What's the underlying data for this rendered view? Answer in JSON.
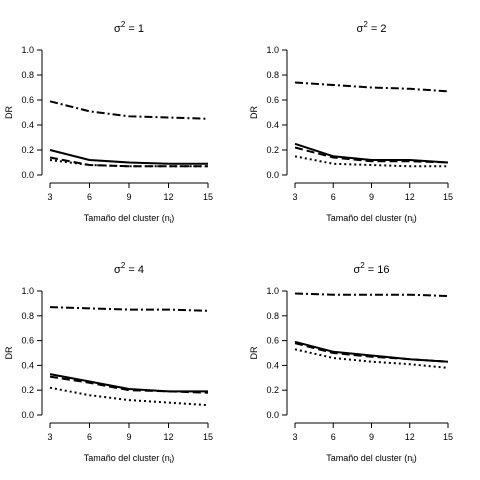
{
  "chart_data": [
    {
      "type": "line",
      "title": {
        "prefix": "σ",
        "sup": "2",
        "suffix": " = 1"
      },
      "xlabel": {
        "text": "Tamaño del cluster (n",
        "sub": "i",
        "close": ")"
      },
      "ylabel": "DR",
      "xlim": [
        3,
        15
      ],
      "ylim": [
        0,
        1
      ],
      "xticks": [
        "3",
        "6",
        "9",
        "12",
        "15"
      ],
      "yticks": [
        "0.0",
        "0.2",
        "0.4",
        "0.6",
        "0.8",
        "1.0"
      ],
      "x": [
        3,
        6,
        9,
        12,
        15
      ],
      "series": [
        {
          "style": "solid",
          "values": [
            0.2,
            0.12,
            0.1,
            0.09,
            0.09
          ]
        },
        {
          "style": "dashed",
          "values": [
            0.14,
            0.08,
            0.07,
            0.07,
            0.07
          ]
        },
        {
          "style": "dotted",
          "values": [
            0.12,
            0.08,
            0.07,
            0.07,
            0.07
          ]
        },
        {
          "style": "dotdash",
          "values": [
            0.59,
            0.51,
            0.47,
            0.46,
            0.45
          ]
        }
      ]
    },
    {
      "type": "line",
      "title": {
        "prefix": "σ",
        "sup": "2",
        "suffix": " = 2"
      },
      "xlabel": {
        "text": "Tamaño del cluster (n",
        "sub": "i",
        "close": ")"
      },
      "ylabel": "DR",
      "xlim": [
        3,
        15
      ],
      "ylim": [
        0,
        1
      ],
      "xticks": [
        "3",
        "6",
        "9",
        "12",
        "15"
      ],
      "yticks": [
        "0.0",
        "0.2",
        "0.4",
        "0.6",
        "0.8",
        "1.0"
      ],
      "x": [
        3,
        6,
        9,
        12,
        15
      ],
      "series": [
        {
          "style": "solid",
          "values": [
            0.25,
            0.15,
            0.12,
            0.12,
            0.1
          ]
        },
        {
          "style": "dashed",
          "values": [
            0.22,
            0.14,
            0.11,
            0.11,
            0.1
          ]
        },
        {
          "style": "dotted",
          "values": [
            0.15,
            0.09,
            0.08,
            0.07,
            0.07
          ]
        },
        {
          "style": "dotdash",
          "values": [
            0.74,
            0.72,
            0.7,
            0.69,
            0.67
          ]
        }
      ]
    },
    {
      "type": "line",
      "title": {
        "prefix": "σ",
        "sup": "2",
        "suffix": " = 4"
      },
      "xlabel": {
        "text": "Tamaño del cluster (n",
        "sub": "i",
        "close": ")"
      },
      "ylabel": "DR",
      "xlim": [
        3,
        15
      ],
      "ylim": [
        0,
        1
      ],
      "xticks": [
        "3",
        "6",
        "9",
        "12",
        "15"
      ],
      "yticks": [
        "0.0",
        "0.2",
        "0.4",
        "0.6",
        "0.8",
        "1.0"
      ],
      "x": [
        3,
        6,
        9,
        12,
        15
      ],
      "series": [
        {
          "style": "solid",
          "values": [
            0.33,
            0.27,
            0.21,
            0.19,
            0.19
          ]
        },
        {
          "style": "dashed",
          "values": [
            0.31,
            0.26,
            0.2,
            0.19,
            0.18
          ]
        },
        {
          "style": "dotted",
          "values": [
            0.22,
            0.16,
            0.12,
            0.1,
            0.08
          ]
        },
        {
          "style": "dotdash",
          "values": [
            0.87,
            0.86,
            0.85,
            0.85,
            0.84
          ]
        }
      ]
    },
    {
      "type": "line",
      "title": {
        "prefix": "σ",
        "sup": "2",
        "suffix": " = 16"
      },
      "xlabel": {
        "text": "Tamaño del cluster (n",
        "sub": "i",
        "close": ")"
      },
      "ylabel": "DR",
      "xlim": [
        3,
        15
      ],
      "ylim": [
        0,
        1
      ],
      "xticks": [
        "3",
        "6",
        "9",
        "12",
        "15"
      ],
      "yticks": [
        "0.0",
        "0.2",
        "0.4",
        "0.6",
        "0.8",
        "1.0"
      ],
      "x": [
        3,
        6,
        9,
        12,
        15
      ],
      "series": [
        {
          "style": "solid",
          "values": [
            0.59,
            0.51,
            0.48,
            0.45,
            0.43
          ]
        },
        {
          "style": "dashed",
          "values": [
            0.58,
            0.5,
            0.47,
            0.45,
            0.43
          ]
        },
        {
          "style": "dotted",
          "values": [
            0.53,
            0.46,
            0.43,
            0.41,
            0.38
          ]
        },
        {
          "style": "dotdash",
          "values": [
            0.98,
            0.97,
            0.97,
            0.97,
            0.96
          ]
        }
      ]
    }
  ]
}
